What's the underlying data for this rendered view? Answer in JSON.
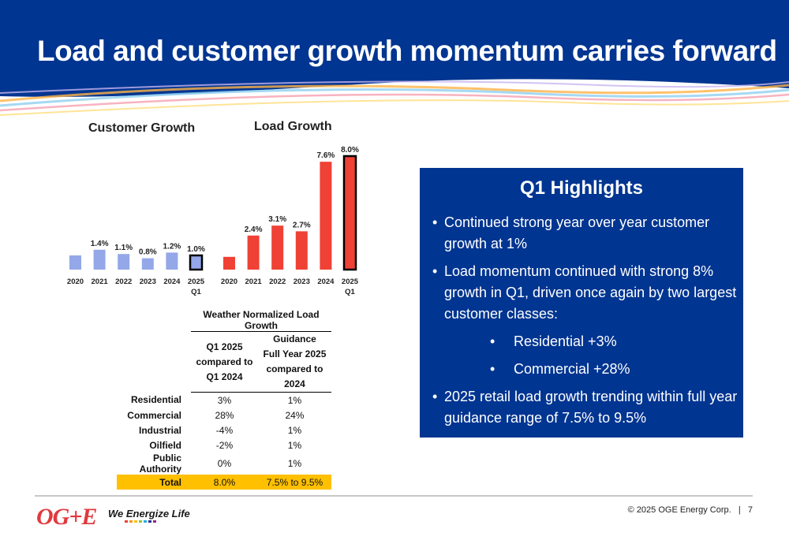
{
  "slide": {
    "title": "Load and customer growth momentum carries forward"
  },
  "colors": {
    "header_blue": "#003591",
    "customer_bar": "#94a7e8",
    "load_bar": "#ef4136",
    "highlight_box": "#003591",
    "total_row": "#ffc000",
    "logo_red": "#e03a3e"
  },
  "chart_data": [
    {
      "type": "bar",
      "title": "Customer Growth",
      "categories": [
        "2020",
        "2021",
        "2022",
        "2023",
        "2024",
        "2025 Q1"
      ],
      "values": [
        1.0,
        1.4,
        1.1,
        0.8,
        1.2,
        1.0
      ],
      "data_labels": [
        "",
        "1.4%",
        "1.1%",
        "0.8%",
        "1.2%",
        "1.0%"
      ],
      "color": "#94a7e8",
      "highlight_last": true
    },
    {
      "type": "bar",
      "title": "Load Growth",
      "categories": [
        "2020",
        "2021",
        "2022",
        "2023",
        "2024",
        "2025 Q1"
      ],
      "values": [
        0.9,
        2.4,
        3.1,
        2.7,
        7.6,
        8.0
      ],
      "data_labels": [
        "",
        "2.4%",
        "3.1%",
        "2.7%",
        "7.6%",
        "8.0%"
      ],
      "color": "#ef4136",
      "highlight_last": true
    }
  ],
  "wnl_table": {
    "caption": "Weather Normalized Load Growth",
    "col1_header": [
      "Q1 2025",
      "compared to",
      "Q1 2024"
    ],
    "col2_header": [
      "Guidance",
      "Full Year 2025",
      "compared to",
      "2024"
    ],
    "rows": [
      {
        "label": "Residential",
        "q1": "3%",
        "guidance": "1%"
      },
      {
        "label": "Commercial",
        "q1": "28%",
        "guidance": "24%"
      },
      {
        "label": "Industrial",
        "q1": "-4%",
        "guidance": "1%"
      },
      {
        "label": "Oilfield",
        "q1": "-2%",
        "guidance": "1%"
      },
      {
        "label": "Public Authority",
        "q1": "0%",
        "guidance": "1%"
      }
    ],
    "total": {
      "label": "Total",
      "q1": "8.0%",
      "guidance": "7.5% to 9.5%"
    }
  },
  "highlights": {
    "title": "Q1 Highlights",
    "bullet1": "Continued strong year over year customer growth at 1%",
    "bullet2": "Load momentum continued with strong 8% growth in Q1, driven once again by two largest customer classes:",
    "sub1": "Residential +3%",
    "sub2": "Commercial +28%",
    "bullet3": "2025 retail load growth trending within full year guidance range of 7.5% to 9.5%"
  },
  "footer": {
    "logo_text": "OG+E",
    "tagline": "We Energize Life",
    "copyright": "© 2025 OGE Energy Corp.",
    "separator": "|",
    "page_number": "7"
  }
}
